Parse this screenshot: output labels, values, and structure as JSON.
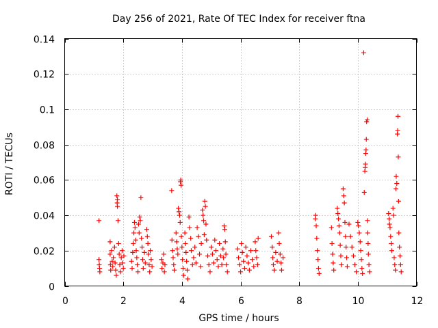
{
  "chart_data": {
    "type": "scatter",
    "title": "Day 256 of 2021, Rate Of TEC Index for receiver ftna",
    "xlabel": "GPS time / hours",
    "ylabel": "ROTI / TECUs",
    "xlim": [
      0,
      12
    ],
    "ylim": [
      0,
      0.14
    ],
    "xticks": [
      0,
      2,
      4,
      6,
      8,
      10,
      12
    ],
    "xtick_labels": [
      "0",
      "2",
      "4",
      "6",
      "8",
      "10",
      "12"
    ],
    "yticks": [
      0,
      0.02,
      0.04,
      0.06,
      0.08,
      0.1,
      0.12,
      0.14
    ],
    "ytick_labels": [
      "0",
      "0.02",
      "0.04",
      "0.06",
      "0.08",
      "0.1",
      "0.12",
      "0.14"
    ],
    "grid": true,
    "marker": "+",
    "series": [
      {
        "name": "ROTI",
        "color": "#ff0000",
        "points": [
          [
            1.17,
            0.037
          ],
          [
            1.17,
            0.015
          ],
          [
            1.18,
            0.012
          ],
          [
            1.19,
            0.01
          ],
          [
            1.2,
            0.008
          ],
          [
            1.55,
            0.025
          ],
          [
            1.55,
            0.018
          ],
          [
            1.56,
            0.012
          ],
          [
            1.57,
            0.009
          ],
          [
            1.6,
            0.02
          ],
          [
            1.62,
            0.014
          ],
          [
            1.64,
            0.011
          ],
          [
            1.66,
            0.016
          ],
          [
            1.7,
            0.022
          ],
          [
            1.72,
            0.013
          ],
          [
            1.74,
            0.009
          ],
          [
            1.76,
            0.006
          ],
          [
            1.78,
            0.051
          ],
          [
            1.79,
            0.047
          ],
          [
            1.8,
            0.045
          ],
          [
            1.8,
            0.049
          ],
          [
            1.82,
            0.037
          ],
          [
            1.84,
            0.024
          ],
          [
            1.86,
            0.018
          ],
          [
            1.88,
            0.012
          ],
          [
            1.9,
            0.008
          ],
          [
            1.93,
            0.016
          ],
          [
            1.96,
            0.02
          ],
          [
            1.98,
            0.013
          ],
          [
            2.0,
            0.01
          ],
          [
            2.02,
            0.017
          ],
          [
            2.28,
            0.014
          ],
          [
            2.3,
            0.01
          ],
          [
            2.32,
            0.019
          ],
          [
            2.34,
            0.024
          ],
          [
            2.36,
            0.03
          ],
          [
            2.38,
            0.036
          ],
          [
            2.4,
            0.033
          ],
          [
            2.42,
            0.026
          ],
          [
            2.44,
            0.02
          ],
          [
            2.46,
            0.016
          ],
          [
            2.48,
            0.012
          ],
          [
            2.5,
            0.008
          ],
          [
            2.52,
            0.035
          ],
          [
            2.54,
            0.03
          ],
          [
            2.56,
            0.039
          ],
          [
            2.58,
            0.037
          ],
          [
            2.6,
            0.05
          ],
          [
            2.62,
            0.027
          ],
          [
            2.64,
            0.022
          ],
          [
            2.66,
            0.015
          ],
          [
            2.68,
            0.01
          ],
          [
            2.72,
            0.019
          ],
          [
            2.75,
            0.013
          ],
          [
            2.8,
            0.032
          ],
          [
            2.82,
            0.028
          ],
          [
            2.84,
            0.024
          ],
          [
            2.86,
            0.018
          ],
          [
            2.88,
            0.012
          ],
          [
            2.9,
            0.008
          ],
          [
            2.92,
            0.02
          ],
          [
            2.95,
            0.015
          ],
          [
            2.98,
            0.011
          ],
          [
            3.3,
            0.015
          ],
          [
            3.32,
            0.01
          ],
          [
            3.35,
            0.013
          ],
          [
            3.38,
            0.018
          ],
          [
            3.4,
            0.008
          ],
          [
            3.42,
            0.012
          ],
          [
            3.65,
            0.054
          ],
          [
            3.66,
            0.026
          ],
          [
            3.68,
            0.02
          ],
          [
            3.7,
            0.016
          ],
          [
            3.72,
            0.012
          ],
          [
            3.74,
            0.009
          ],
          [
            3.8,
            0.03
          ],
          [
            3.82,
            0.025
          ],
          [
            3.84,
            0.021
          ],
          [
            3.86,
            0.018
          ],
          [
            3.88,
            0.044
          ],
          [
            3.9,
            0.042
          ],
          [
            3.92,
            0.04
          ],
          [
            3.94,
            0.036
          ],
          [
            3.95,
            0.059
          ],
          [
            3.96,
            0.06
          ],
          [
            3.97,
            0.057
          ],
          [
            3.98,
            0.028
          ],
          [
            4.0,
            0.022
          ],
          [
            4.02,
            0.015
          ],
          [
            4.04,
            0.01
          ],
          [
            4.06,
            0.006
          ],
          [
            4.1,
            0.03
          ],
          [
            4.12,
            0.024
          ],
          [
            4.14,
            0.019
          ],
          [
            4.16,
            0.014
          ],
          [
            4.18,
            0.009
          ],
          [
            4.2,
            0.004
          ],
          [
            4.24,
            0.039
          ],
          [
            4.26,
            0.033
          ],
          [
            4.3,
            0.027
          ],
          [
            4.32,
            0.02
          ],
          [
            4.36,
            0.012
          ],
          [
            4.4,
            0.016
          ],
          [
            4.44,
            0.022
          ],
          [
            4.48,
            0.013
          ],
          [
            4.52,
            0.033
          ],
          [
            4.56,
            0.028
          ],
          [
            4.6,
            0.018
          ],
          [
            4.64,
            0.011
          ],
          [
            4.66,
            0.024
          ],
          [
            4.7,
            0.043
          ],
          [
            4.72,
            0.04
          ],
          [
            4.74,
            0.037
          ],
          [
            4.76,
            0.029
          ],
          [
            4.78,
            0.048
          ],
          [
            4.8,
            0.045
          ],
          [
            4.82,
            0.035
          ],
          [
            4.84,
            0.026
          ],
          [
            4.88,
            0.017
          ],
          [
            4.92,
            0.012
          ],
          [
            4.96,
            0.008
          ],
          [
            5.0,
            0.022
          ],
          [
            5.04,
            0.018
          ],
          [
            5.08,
            0.013
          ],
          [
            5.12,
            0.026
          ],
          [
            5.16,
            0.02
          ],
          [
            5.2,
            0.015
          ],
          [
            5.24,
            0.011
          ],
          [
            5.28,
            0.024
          ],
          [
            5.32,
            0.017
          ],
          [
            5.36,
            0.012
          ],
          [
            5.4,
            0.021
          ],
          [
            5.42,
            0.016
          ],
          [
            5.44,
            0.034
          ],
          [
            5.46,
            0.032
          ],
          [
            5.48,
            0.025
          ],
          [
            5.5,
            0.018
          ],
          [
            5.52,
            0.012
          ],
          [
            5.55,
            0.008
          ],
          [
            5.9,
            0.021
          ],
          [
            5.93,
            0.016
          ],
          [
            5.96,
            0.012
          ],
          [
            6.0,
            0.008
          ],
          [
            6.03,
            0.024
          ],
          [
            6.06,
            0.019
          ],
          [
            6.1,
            0.014
          ],
          [
            6.14,
            0.01
          ],
          [
            6.18,
            0.022
          ],
          [
            6.22,
            0.017
          ],
          [
            6.26,
            0.013
          ],
          [
            6.3,
            0.009
          ],
          [
            6.35,
            0.02
          ],
          [
            6.4,
            0.015
          ],
          [
            6.45,
            0.011
          ],
          [
            6.5,
            0.025
          ],
          [
            6.52,
            0.02
          ],
          [
            6.55,
            0.016
          ],
          [
            6.58,
            0.012
          ],
          [
            6.6,
            0.027
          ],
          [
            7.05,
            0.028
          ],
          [
            7.08,
            0.022
          ],
          [
            7.1,
            0.016
          ],
          [
            7.12,
            0.012
          ],
          [
            7.15,
            0.009
          ],
          [
            7.2,
            0.019
          ],
          [
            7.25,
            0.014
          ],
          [
            7.3,
            0.03
          ],
          [
            7.32,
            0.024
          ],
          [
            7.35,
            0.018
          ],
          [
            7.38,
            0.013
          ],
          [
            7.4,
            0.009
          ],
          [
            7.45,
            0.016
          ],
          [
            8.55,
            0.038
          ],
          [
            8.56,
            0.04
          ],
          [
            8.58,
            0.034
          ],
          [
            8.6,
            0.027
          ],
          [
            8.62,
            0.02
          ],
          [
            8.64,
            0.015
          ],
          [
            8.66,
            0.01
          ],
          [
            8.68,
            0.007
          ],
          [
            9.1,
            0.033
          ],
          [
            9.12,
            0.024
          ],
          [
            9.14,
            0.018
          ],
          [
            9.16,
            0.013
          ],
          [
            9.18,
            0.009
          ],
          [
            9.3,
            0.044
          ],
          [
            9.32,
            0.041
          ],
          [
            9.34,
            0.038
          ],
          [
            9.36,
            0.034
          ],
          [
            9.38,
            0.03
          ],
          [
            9.4,
            0.023
          ],
          [
            9.42,
            0.017
          ],
          [
            9.44,
            0.012
          ],
          [
            9.5,
            0.055
          ],
          [
            9.52,
            0.051
          ],
          [
            9.54,
            0.047
          ],
          [
            9.56,
            0.036
          ],
          [
            9.58,
            0.028
          ],
          [
            9.6,
            0.022
          ],
          [
            9.62,
            0.016
          ],
          [
            9.64,
            0.011
          ],
          [
            9.7,
            0.035
          ],
          [
            9.75,
            0.028
          ],
          [
            9.8,
            0.022
          ],
          [
            9.85,
            0.017
          ],
          [
            9.9,
            0.012
          ],
          [
            9.95,
            0.008
          ],
          [
            10.0,
            0.036
          ],
          [
            10.02,
            0.034
          ],
          [
            10.05,
            0.03
          ],
          [
            10.08,
            0.025
          ],
          [
            10.1,
            0.02
          ],
          [
            10.12,
            0.015
          ],
          [
            10.14,
            0.01
          ],
          [
            10.16,
            0.007
          ],
          [
            10.2,
            0.132
          ],
          [
            10.22,
            0.053
          ],
          [
            10.24,
            0.065
          ],
          [
            10.25,
            0.067
          ],
          [
            10.26,
            0.069
          ],
          [
            10.27,
            0.075
          ],
          [
            10.28,
            0.077
          ],
          [
            10.29,
            0.083
          ],
          [
            10.3,
            0.093
          ],
          [
            10.32,
            0.094
          ],
          [
            10.33,
            0.037
          ],
          [
            10.34,
            0.03
          ],
          [
            10.35,
            0.024
          ],
          [
            10.36,
            0.018
          ],
          [
            10.38,
            0.012
          ],
          [
            10.4,
            0.008
          ],
          [
            11.05,
            0.041
          ],
          [
            11.07,
            0.038
          ],
          [
            11.08,
            0.035
          ],
          [
            11.1,
            0.033
          ],
          [
            11.12,
            0.028
          ],
          [
            11.14,
            0.024
          ],
          [
            11.16,
            0.02
          ],
          [
            11.2,
            0.044
          ],
          [
            11.22,
            0.04
          ],
          [
            11.24,
            0.016
          ],
          [
            11.26,
            0.012
          ],
          [
            11.28,
            0.009
          ],
          [
            11.3,
            0.055
          ],
          [
            11.31,
            0.062
          ],
          [
            11.33,
            0.058
          ],
          [
            11.35,
            0.086
          ],
          [
            11.36,
            0.088
          ],
          [
            11.37,
            0.096
          ],
          [
            11.38,
            0.073
          ],
          [
            11.39,
            0.048
          ],
          [
            11.4,
            0.03
          ],
          [
            11.42,
            0.022
          ],
          [
            11.44,
            0.017
          ],
          [
            11.46,
            0.012
          ],
          [
            11.48,
            0.008
          ]
        ]
      }
    ]
  }
}
